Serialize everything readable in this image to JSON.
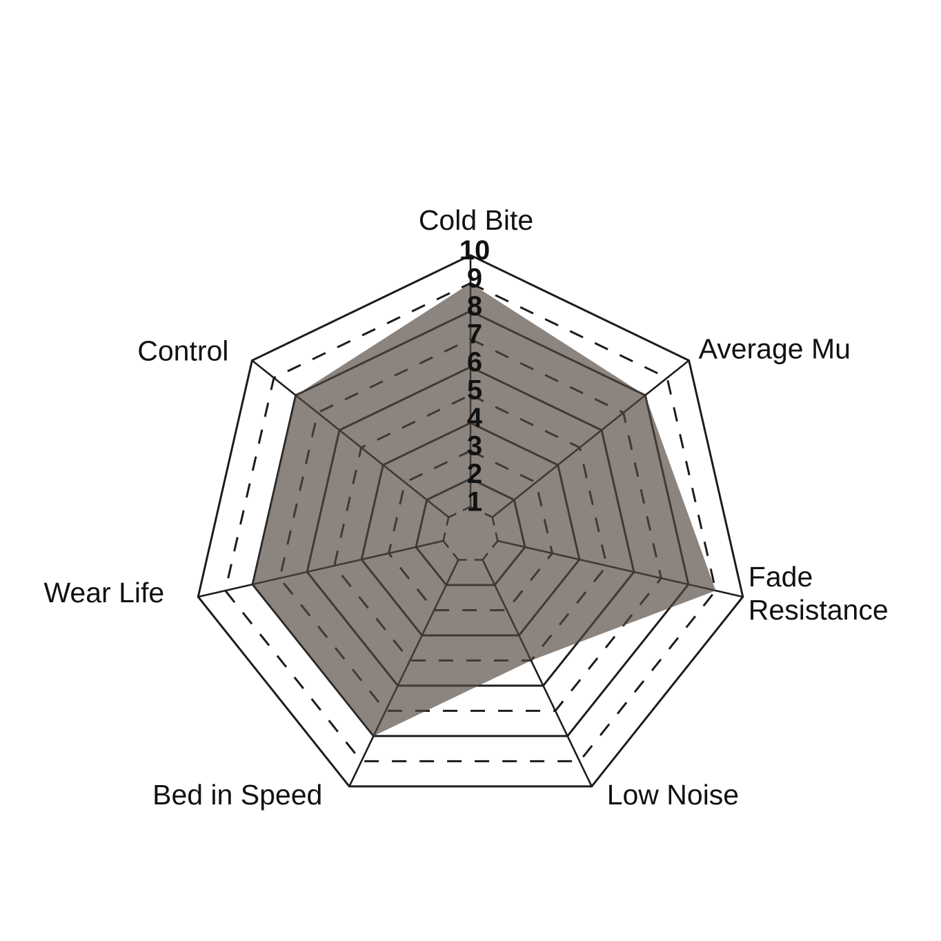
{
  "chart_data": {
    "type": "radar",
    "title": "",
    "categories": [
      "Cold Bite",
      "Average Mu",
      "Fade Resistance",
      "Low Noise",
      "Bed in Speed",
      "Wear Life",
      "Control"
    ],
    "label_lines": [
      [
        "Cold Bite"
      ],
      [
        "Average Mu"
      ],
      [
        "Fade",
        "Resistance"
      ],
      [
        "Low Noise"
      ],
      [
        "Bed in Speed"
      ],
      [
        "Wear Life"
      ],
      [
        "Control"
      ]
    ],
    "values": [
      9,
      8,
      9,
      5,
      8,
      8,
      8
    ],
    "scale": {
      "min": 1,
      "max": 10,
      "tick_labels": [
        "10",
        "9",
        "8",
        "7",
        "6",
        "5",
        "4",
        "3",
        "2",
        "1"
      ]
    },
    "grid": {
      "solid_rings": [
        2,
        4,
        6,
        8,
        10
      ],
      "dashed_rings": [
        3,
        5,
        7,
        9
      ],
      "stub_ring": 1,
      "legend": "none",
      "grid_on": true
    },
    "colors": {
      "background": "#ffffff",
      "grid_line": "#1c1c1c",
      "series_fill": "rgba(83,72,62,0.67)",
      "label_text": "#111111"
    }
  }
}
